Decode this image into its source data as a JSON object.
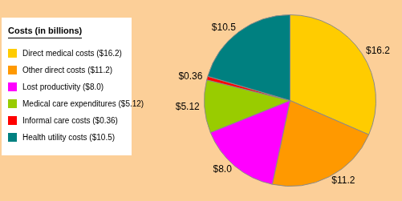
{
  "chart_data": {
    "type": "pie",
    "title": "Costs (in billions)",
    "categories": [
      "Direct medical costs ($16.2)",
      "Other direct costs ($11.2)",
      "Lost productivity ($8.0)",
      "Medical care expenditures ($5.12)",
      "Informal care costs ($0.36)",
      "Health utility costs ($10.5)"
    ],
    "values": [
      16.2,
      11.2,
      8.0,
      5.12,
      0.36,
      10.5
    ],
    "value_labels": [
      "$16.2",
      "$11.2",
      "$8.0",
      "$5.12",
      "$0.36",
      "$10.5"
    ],
    "colors": [
      "#ffcc00",
      "#ff9900",
      "#ff00ff",
      "#99cc00",
      "#ff0000",
      "#008080"
    ],
    "data_labels": true,
    "legend": "left"
  }
}
